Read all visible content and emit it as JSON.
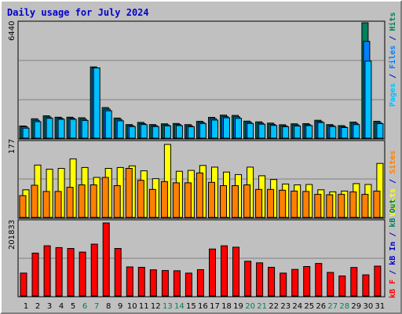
{
  "title": "Daily usage for July 2024",
  "colors": {
    "hits": "#00805c",
    "files": "#0080ff",
    "pages": "#00c0ff",
    "visits": "#ffff00",
    "sites": "#ff8000",
    "kbin": "#ff0000",
    "kbout": "#00805c",
    "text_blue": "#0000cc",
    "weekend": "#00805c",
    "weekday": "#000000"
  },
  "chart_data": [
    {
      "type": "bar",
      "panel": "pages-files-hits",
      "categories": [
        "1",
        "2",
        "3",
        "4",
        "5",
        "6",
        "7",
        "8",
        "9",
        "10",
        "11",
        "12",
        "13",
        "14",
        "15",
        "16",
        "17",
        "18",
        "19",
        "20",
        "21",
        "22",
        "23",
        "24",
        "25",
        "26",
        "27",
        "28",
        "29",
        "30",
        "31"
      ],
      "max_label": "6440",
      "ylim": [
        0,
        6440
      ],
      "legend_parts": [
        "Pages",
        "/",
        "Files",
        "/",
        "Hits"
      ],
      "series": [
        {
          "name": "Hits",
          "values": [
            680,
            1080,
            1250,
            1170,
            1170,
            1140,
            3980,
            1710,
            1120,
            760,
            880,
            760,
            800,
            820,
            760,
            940,
            1160,
            1290,
            1270,
            950,
            910,
            840,
            750,
            800,
            810,
            1000,
            760,
            700,
            900,
            6440,
            940
          ]
        },
        {
          "name": "Files",
          "values": [
            640,
            1000,
            1180,
            1110,
            1110,
            1060,
            3920,
            1620,
            1050,
            700,
            810,
            700,
            740,
            760,
            690,
            870,
            1090,
            1210,
            1190,
            880,
            840,
            770,
            690,
            740,
            750,
            930,
            700,
            640,
            830,
            5400,
            870
          ]
        },
        {
          "name": "Pages",
          "values": [
            560,
            920,
            1110,
            1050,
            1050,
            990,
            3920,
            1530,
            970,
            650,
            760,
            650,
            690,
            700,
            640,
            820,
            1010,
            1140,
            1110,
            820,
            780,
            710,
            640,
            680,
            700,
            870,
            650,
            590,
            760,
            4300,
            810
          ]
        }
      ]
    },
    {
      "type": "bar",
      "panel": "visits-sites",
      "categories": [
        "1",
        "2",
        "3",
        "4",
        "5",
        "6",
        "7",
        "8",
        "9",
        "10",
        "11",
        "12",
        "13",
        "14",
        "15",
        "16",
        "17",
        "18",
        "19",
        "20",
        "21",
        "22",
        "23",
        "24",
        "25",
        "26",
        "27",
        "28",
        "29",
        "30",
        "31"
      ],
      "max_label": "177",
      "ylim": [
        0,
        177
      ],
      "legend_parts": [
        "Visits",
        "/",
        "Sites"
      ],
      "series": [
        {
          "name": "Visits",
          "values": [
            67,
            127,
            117,
            119,
            142,
            121,
            97,
            119,
            121,
            125,
            113,
            94,
            177,
            112,
            114,
            126,
            122,
            110,
            104,
            122,
            101,
            92,
            81,
            79,
            80,
            67,
            62,
            64,
            82,
            80,
            131
          ]
        },
        {
          "name": "Sites",
          "values": [
            53,
            78,
            63,
            63,
            73,
            79,
            79,
            97,
            77,
            119,
            90,
            68,
            87,
            84,
            84,
            108,
            85,
            77,
            77,
            79,
            68,
            68,
            66,
            64,
            63,
            56,
            55,
            56,
            62,
            56,
            64
          ]
        }
      ]
    },
    {
      "type": "bar",
      "panel": "kbin-kbout",
      "categories": [
        "1",
        "2",
        "3",
        "4",
        "5",
        "6",
        "7",
        "8",
        "9",
        "10",
        "11",
        "12",
        "13",
        "14",
        "15",
        "16",
        "17",
        "18",
        "19",
        "20",
        "21",
        "22",
        "23",
        "24",
        "25",
        "26",
        "27",
        "28",
        "29",
        "30",
        "31"
      ],
      "max_label": "201833",
      "ylim": [
        0,
        201833
      ],
      "legend_parts": [
        "kB F",
        "/",
        "kB In",
        "/",
        "kB Out"
      ],
      "series": [
        {
          "name": "kB In",
          "values": [
            63200,
            118600,
            138700,
            133600,
            131300,
            121400,
            143200,
            201833,
            131300,
            80300,
            79200,
            72300,
            70300,
            69600,
            63200,
            72600,
            129700,
            138700,
            134800,
            96000,
            91500,
            79300,
            63200,
            73400,
            81400,
            89900,
            65200,
            55400,
            78800,
            58400,
            82500
          ]
        },
        {
          "name": "kB Out",
          "values": [
            0,
            0,
            0,
            0,
            0,
            0,
            0,
            0,
            0,
            0,
            0,
            0,
            0,
            0,
            0,
            0,
            0,
            0,
            0,
            0,
            0,
            0,
            0,
            0,
            0,
            0,
            0,
            0,
            0,
            0,
            0
          ]
        }
      ]
    }
  ],
  "weekend_days": [
    "6",
    "7",
    "13",
    "14",
    "20",
    "21",
    "27",
    "28"
  ]
}
